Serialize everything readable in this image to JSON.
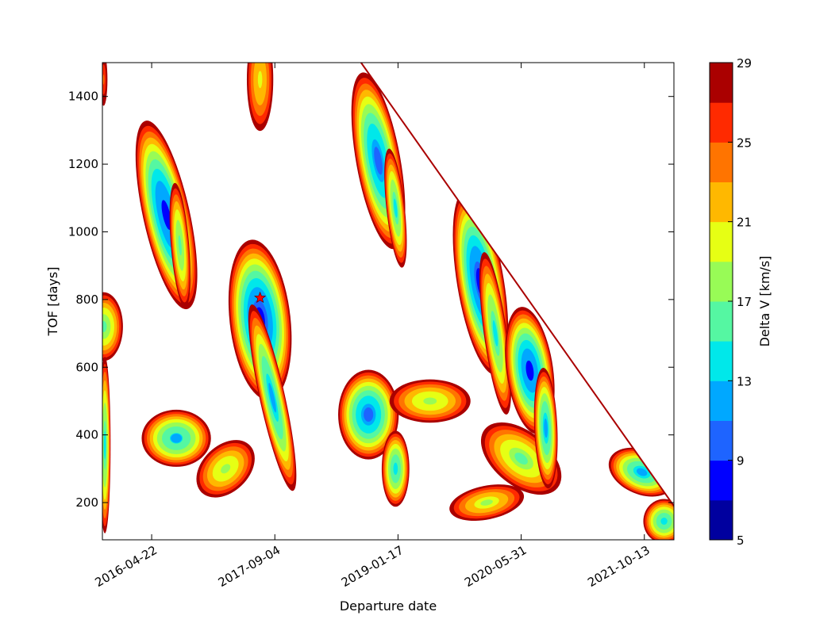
{
  "chart_data": {
    "type": "heatmap",
    "title": "",
    "xlabel": "Departure date",
    "ylabel": "TOF [days]",
    "x_tick_labels": [
      "2016-04-22",
      "2017-09-04",
      "2019-01-17",
      "2020-05-31",
      "2021-10-13"
    ],
    "x_ticks_days": [
      0,
      500,
      1000,
      1500,
      2000
    ],
    "xlim_days": [
      -200,
      2120
    ],
    "y_ticks": [
      200,
      400,
      600,
      800,
      1000,
      1200,
      1400
    ],
    "ylim": [
      90,
      1500
    ],
    "colorbar": {
      "label": "Delta V [km/s]",
      "levels": [
        5,
        7,
        9,
        11,
        13,
        15,
        17,
        19,
        21,
        23,
        25,
        27,
        29
      ],
      "tick_labels": [
        "5",
        "9",
        "13",
        "17",
        "21",
        "25",
        "29"
      ],
      "colors": [
        "#00009f",
        "#0000ff",
        "#1e64ff",
        "#00a8ff",
        "#00e8ea",
        "#55f7a2",
        "#98fb56",
        "#e6ff14",
        "#ffb800",
        "#ff7400",
        "#ff2a00",
        "#aa0000"
      ]
    },
    "optimum_marker": {
      "departure_day": 440,
      "tof": 805,
      "symbol": "star",
      "color": "#ff0000"
    },
    "boundary": {
      "from": [
        850,
        1500
      ],
      "to": [
        2120,
        190
      ]
    },
    "regions": [
      {
        "cx": -195,
        "cy": 720,
        "a": 85,
        "b": 110,
        "tilt": 0,
        "dv": 15.5
      },
      {
        "cx": -190,
        "cy": 370,
        "a": 25,
        "b": 280,
        "tilt": 0,
        "dv": 14
      },
      {
        "cx": -195,
        "cy": 1450,
        "a": 20,
        "b": 100,
        "tilt": 0,
        "dv": 24
      },
      {
        "cx": 60,
        "cy": 1050,
        "a": 100,
        "b": 300,
        "tilt": 0.16,
        "dv": 8.6
      },
      {
        "cx": 115,
        "cy": 960,
        "a": 40,
        "b": 200,
        "tilt": 0.06,
        "dv": 15
      },
      {
        "cx": 100,
        "cy": 390,
        "a": 150,
        "b": 90,
        "tilt": 0,
        "dv": 12.5
      },
      {
        "cx": 300,
        "cy": 300,
        "a": 150,
        "b": 75,
        "tilt": 0.7,
        "dv": 17
      },
      {
        "cx": 440,
        "cy": 740,
        "a": 130,
        "b": 250,
        "tilt": 0.08,
        "dv": 7.8
      },
      {
        "cx": 490,
        "cy": 510,
        "a": 55,
        "b": 300,
        "tilt": 0.16,
        "dv": 12
      },
      {
        "cx": 440,
        "cy": 1450,
        "a": 60,
        "b": 170,
        "tilt": 0,
        "dv": 19
      },
      {
        "cx": 920,
        "cy": 1210,
        "a": 95,
        "b": 280,
        "tilt": 0.13,
        "dv": 10
      },
      {
        "cx": 990,
        "cy": 1070,
        "a": 40,
        "b": 190,
        "tilt": 0.08,
        "dv": 14
      },
      {
        "cx": 880,
        "cy": 460,
        "a": 130,
        "b": 140,
        "tilt": 0,
        "dv": 10
      },
      {
        "cx": 990,
        "cy": 300,
        "a": 60,
        "b": 120,
        "tilt": 0,
        "dv": 13
      },
      {
        "cx": 1130,
        "cy": 500,
        "a": 180,
        "b": 70,
        "tilt": 0,
        "dv": 17
      },
      {
        "cx": 1335,
        "cy": 850,
        "a": 100,
        "b": 290,
        "tilt": 0.12,
        "dv": 8
      },
      {
        "cx": 1395,
        "cy": 700,
        "a": 50,
        "b": 260,
        "tilt": 0.1,
        "dv": 14
      },
      {
        "cx": 1360,
        "cy": 200,
        "a": 170,
        "b": 55,
        "tilt": 0.15,
        "dv": 18
      },
      {
        "cx": 1500,
        "cy": 330,
        "a": 120,
        "b": 150,
        "tilt": 0.9,
        "dv": 16
      },
      {
        "cx": 1535,
        "cy": 590,
        "a": 100,
        "b": 200,
        "tilt": 0.1,
        "dv": 8.8
      },
      {
        "cx": 1600,
        "cy": 420,
        "a": 50,
        "b": 190,
        "tilt": 0.03,
        "dv": 12
      },
      {
        "cx": 1990,
        "cy": 290,
        "a": 150,
        "b": 70,
        "tilt": -0.3,
        "dv": 12
      },
      {
        "cx": 2080,
        "cy": 145,
        "a": 90,
        "b": 70,
        "tilt": 0,
        "dv": 13
      }
    ]
  }
}
